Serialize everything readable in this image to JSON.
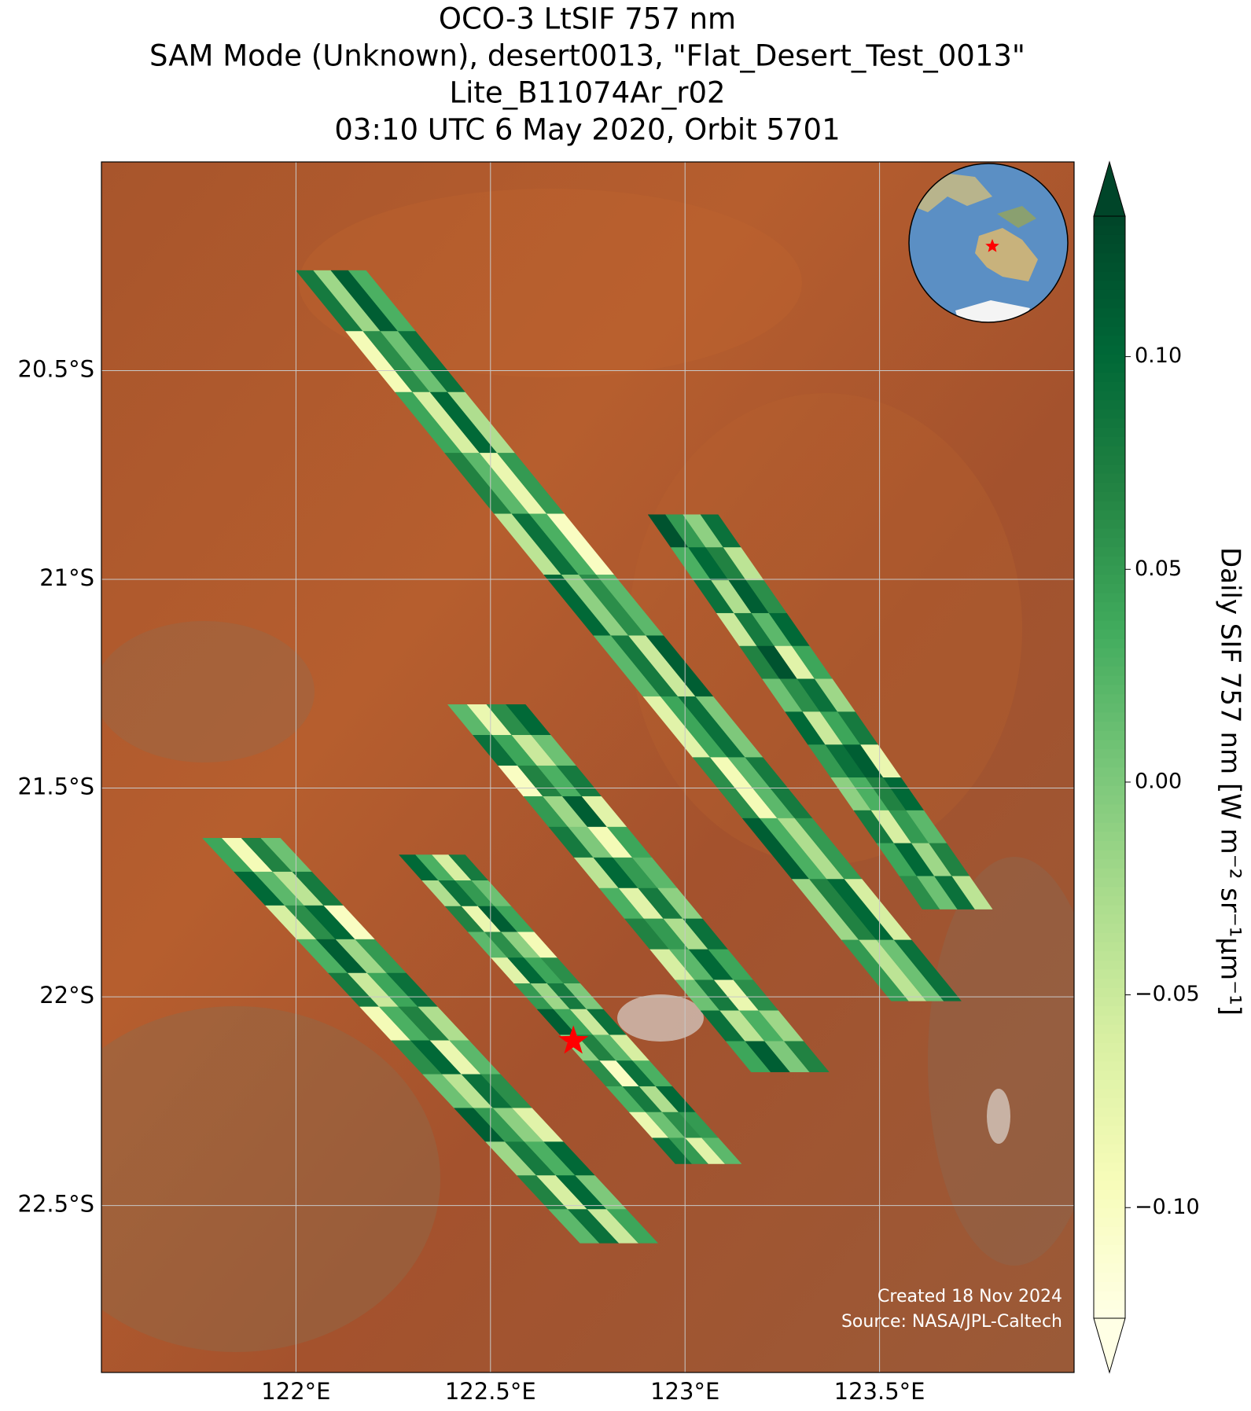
{
  "chart_data": {
    "type": "swath-map",
    "title_lines": [
      "OCO-3 LtSIF 757 nm",
      "SAM Mode (Unknown), desert0013, \"Flat_Desert_Test_0013\"",
      "Lite_B11074Ar_r02",
      "03:10 UTC 6 May 2020, Orbit 5701"
    ],
    "xlim": [
      121.5,
      124.0
    ],
    "ylim": [
      -20.0,
      -22.9
    ],
    "xticks": [
      {
        "value": 122,
        "label": "122°E"
      },
      {
        "value": 122.5,
        "label": "122.5°E"
      },
      {
        "value": 123,
        "label": "123°E"
      },
      {
        "value": 123.5,
        "label": "123.5°E"
      }
    ],
    "yticks": [
      {
        "value": -20.5,
        "label": "20.5°S"
      },
      {
        "value": -21,
        "label": "21°S"
      },
      {
        "value": -21.5,
        "label": "21.5°S"
      },
      {
        "value": -22,
        "label": "22°S"
      },
      {
        "value": -22.5,
        "label": "22.5°S"
      }
    ],
    "grid": true,
    "colorbar": {
      "label": "Daily SIF 757 nm [W m⁻² sr⁻¹μm⁻¹]",
      "clim": [
        -0.126,
        0.133
      ],
      "ticks": [
        {
          "value": 0.1,
          "label": "0.10"
        },
        {
          "value": 0.05,
          "label": "0.05"
        },
        {
          "value": 0,
          "label": "0.00"
        },
        {
          "value": -0.05,
          "label": "−0.05"
        },
        {
          "value": -0.1,
          "label": "−0.10"
        }
      ],
      "colors": [
        "#ffffe5",
        "#f7fcb9",
        "#d9f0a3",
        "#addd8e",
        "#78c679",
        "#41ab5d",
        "#238443",
        "#006837",
        "#004529"
      ]
    },
    "swaths": [
      {
        "start": [
          122.09,
          -20.26
        ],
        "end": [
          123.62,
          -22.01
        ],
        "width": 0.18,
        "values": [
          [
            0.08,
            -0.02,
            0.11,
            0.03
          ],
          [
            -0.09,
            0.06,
            0.01,
            0.09
          ],
          [
            0.04,
            -0.06,
            0.1,
            -0.03
          ],
          [
            0.07,
            0.02,
            -0.08,
            0.05
          ],
          [
            -0.04,
            0.09,
            0.03,
            -0.1
          ],
          [
            0.1,
            -0.01,
            0.06,
            0.02
          ],
          [
            0.02,
            0.08,
            -0.05,
            0.11
          ],
          [
            -0.07,
            0.04,
            0.09,
            0.0
          ],
          [
            0.06,
            -0.09,
            0.02,
            0.08
          ],
          [
            0.11,
            0.03,
            -0.03,
            0.05
          ],
          [
            -0.02,
            0.07,
            0.1,
            -0.06
          ],
          [
            0.05,
            -0.04,
            0.01,
            0.09
          ]
        ]
      },
      {
        "start": [
          122.995,
          -20.845
        ],
        "end": [
          123.7,
          -21.79
        ],
        "width": 0.18,
        "values": [
          [
            0.12,
            0.05,
            -0.01,
            0.09
          ],
          [
            0.03,
            0.1,
            0.07,
            -0.04
          ],
          [
            0.09,
            -0.03,
            0.11,
            0.06
          ],
          [
            -0.05,
            0.08,
            0.02,
            0.1
          ],
          [
            0.07,
            0.12,
            -0.07,
            0.04
          ],
          [
            0.01,
            0.06,
            0.09,
            -0.02
          ],
          [
            0.1,
            -0.05,
            0.04,
            0.08
          ],
          [
            0.05,
            0.09,
            0.11,
            -0.08
          ],
          [
            -0.01,
            0.03,
            0.07,
            0.1
          ],
          [
            0.08,
            -0.06,
            0.05,
            0.02
          ],
          [
            0.04,
            0.1,
            -0.02,
            0.07
          ],
          [
            0.06,
            0.01,
            0.09,
            -0.04
          ]
        ]
      },
      {
        "start": [
          122.49,
          -21.3
        ],
        "end": [
          123.27,
          -22.18
        ],
        "width": 0.2,
        "values": [
          [
            0.02,
            -0.08,
            0.06,
            0.1
          ],
          [
            0.09,
            0.04,
            -0.05,
            0.01
          ],
          [
            -0.1,
            0.07,
            0.03,
            0.08
          ],
          [
            0.05,
            -0.02,
            0.11,
            -0.07
          ],
          [
            0.08,
            0.0,
            -0.09,
            0.04
          ],
          [
            -0.04,
            0.1,
            0.05,
            0.02
          ],
          [
            0.03,
            -0.07,
            0.08,
            -0.01
          ],
          [
            0.07,
            0.05,
            -0.03,
            0.09
          ],
          [
            -0.06,
            0.02,
            0.1,
            0.04
          ],
          [
            0.01,
            0.08,
            -0.08,
            0.06
          ],
          [
            0.09,
            -0.04,
            0.03,
            -0.02
          ],
          [
            0.04,
            0.11,
            0.0,
            0.07
          ]
        ]
      },
      {
        "start": [
          122.35,
          -21.66
        ],
        "end": [
          123.06,
          -22.4
        ],
        "width": 0.17,
        "values": [
          [
            0.1,
            0.03,
            -0.06,
            0.08
          ],
          [
            -0.03,
            0.09,
            0.05,
            0.01
          ],
          [
            0.07,
            -0.08,
            0.11,
            0.04
          ],
          [
            0.02,
            0.06,
            -0.01,
            -0.09
          ],
          [
            -0.07,
            0.1,
            0.04,
            0.06
          ],
          [
            0.05,
            -0.02,
            0.08,
            0.0
          ],
          [
            0.11,
            0.04,
            -0.05,
            0.09
          ],
          [
            -0.01,
            0.07,
            0.02,
            -0.06
          ],
          [
            0.06,
            -0.1,
            0.09,
            0.03
          ],
          [
            0.03,
            0.08,
            -0.03,
            0.1
          ],
          [
            -0.08,
            0.01,
            0.06,
            0.05
          ],
          [
            0.09,
            0.05,
            -0.07,
            0.02
          ]
        ]
      },
      {
        "start": [
          121.86,
          -21.62
        ],
        "end": [
          122.83,
          -22.59
        ],
        "width": 0.2,
        "values": [
          [
            0.04,
            -0.09,
            0.07,
            0.01
          ],
          [
            0.1,
            0.02,
            -0.04,
            0.08
          ],
          [
            -0.06,
            0.06,
            0.1,
            -0.1
          ],
          [
            0.03,
            0.11,
            -0.02,
            0.05
          ],
          [
            0.08,
            -0.05,
            0.04,
            0.09
          ],
          [
            -0.09,
            0.03,
            0.07,
            -0.03
          ],
          [
            0.06,
            0.1,
            -0.08,
            0.02
          ],
          [
            0.01,
            -0.04,
            0.09,
            0.06
          ],
          [
            0.11,
            0.05,
            -0.01,
            -0.07
          ],
          [
            -0.02,
            0.08,
            0.03,
            0.1
          ],
          [
            0.07,
            -0.06,
            0.1,
            0.0
          ],
          [
            0.02,
            0.09,
            -0.05,
            0.04
          ]
        ]
      }
    ],
    "target": {
      "lon": 122.713,
      "lat": -22.106
    },
    "credits": [
      "Created 18 Nov 2024",
      "Source: NASA/JPL-Caltech"
    ]
  }
}
